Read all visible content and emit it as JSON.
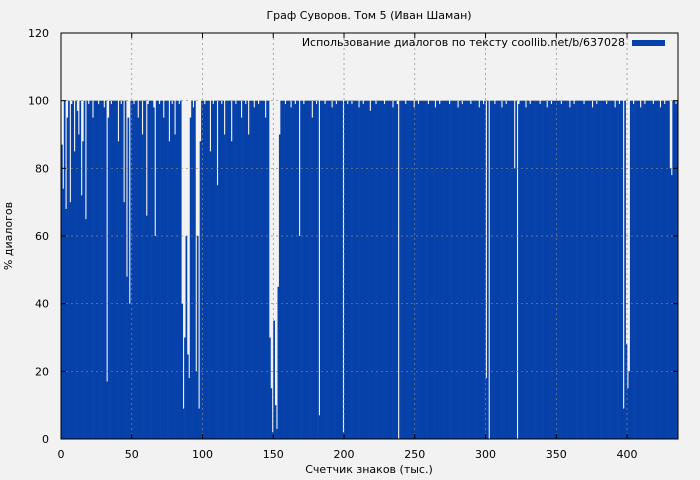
{
  "chart_data": {
    "type": "bar",
    "title": "Граф Суворов. Том 5 (Иван Шаман)",
    "xlabel": "Счетчик знаков (тыс.)",
    "ylabel": "% диалогов",
    "xlim": [
      0,
      436
    ],
    "ylim": [
      0,
      120
    ],
    "xticks": [
      0,
      50,
      100,
      150,
      200,
      250,
      300,
      350,
      400
    ],
    "yticks": [
      0,
      20,
      40,
      60,
      80,
      100,
      120
    ],
    "grid": true,
    "legend_position": "top-right",
    "bar_color": "#0641a9",
    "series": [
      {
        "name": "Использование диалогов по тексту coollib.net/b/637028",
        "x_step": 1,
        "values": [
          87,
          74,
          100,
          68,
          95,
          100,
          70,
          99,
          100,
          85,
          100,
          97,
          90,
          100,
          72,
          88,
          100,
          65,
          100,
          99,
          100,
          100,
          95,
          100,
          100,
          100,
          99,
          100,
          100,
          100,
          98,
          100,
          17,
          95,
          100,
          99,
          100,
          100,
          100,
          100,
          88,
          100,
          99,
          100,
          70,
          100,
          48,
          95,
          40,
          100,
          100,
          99,
          100,
          100,
          95,
          100,
          100,
          90,
          100,
          100,
          66,
          99,
          100,
          100,
          100,
          98,
          60,
          100,
          100,
          99,
          100,
          100,
          95,
          100,
          100,
          100,
          88,
          100,
          99,
          100,
          90,
          100,
          100,
          99,
          100,
          40,
          9,
          30,
          60,
          25,
          18,
          95,
          100,
          98,
          100,
          20,
          60,
          9,
          88,
          100,
          100,
          99,
          100,
          100,
          100,
          85,
          100,
          99,
          100,
          100,
          75,
          100,
          100,
          99,
          100,
          90,
          100,
          100,
          100,
          100,
          88,
          100,
          100,
          99,
          100,
          100,
          100,
          95,
          100,
          100,
          99,
          100,
          90,
          100,
          100,
          100,
          98,
          100,
          100,
          99,
          100,
          100,
          100,
          100,
          95,
          100,
          100,
          30,
          15,
          2,
          35,
          10,
          3,
          45,
          90,
          100,
          100,
          100,
          99,
          100,
          100,
          100,
          98,
          100,
          100,
          99,
          100,
          100,
          60,
          100,
          100,
          99,
          100,
          100,
          100,
          100,
          100,
          95,
          100,
          100,
          99,
          100,
          7,
          100,
          100,
          100,
          99,
          100,
          100,
          100,
          100,
          98,
          100,
          100,
          99,
          100,
          100,
          100,
          100,
          2,
          100,
          100,
          99,
          100,
          100,
          99,
          100,
          100,
          100,
          100,
          98,
          100,
          100,
          99,
          100,
          100,
          100,
          100,
          97,
          100,
          100,
          100,
          99,
          100,
          100,
          100,
          100,
          100,
          99,
          100,
          100,
          100,
          100,
          100,
          98,
          100,
          100,
          99,
          0,
          100,
          100,
          100,
          100,
          99,
          100,
          100,
          100,
          100,
          100,
          98,
          100,
          100,
          99,
          100,
          100,
          100,
          100,
          100,
          100,
          99,
          100,
          100,
          100,
          100,
          98,
          100,
          100,
          99,
          100,
          100,
          100,
          100,
          100,
          100,
          99,
          100,
          100,
          100,
          100,
          100,
          98,
          100,
          100,
          99,
          100,
          100,
          100,
          100,
          100,
          99,
          100,
          100,
          100,
          100,
          100,
          98,
          100,
          100,
          99,
          100,
          18,
          100,
          0,
          100,
          100,
          100,
          99,
          100,
          100,
          100,
          100,
          98,
          100,
          100,
          99,
          100,
          100,
          100,
          100,
          100,
          80,
          100,
          0,
          99,
          100,
          100,
          100,
          100,
          98,
          100,
          100,
          99,
          100,
          100,
          100,
          100,
          100,
          100,
          99,
          100,
          100,
          100,
          100,
          98,
          100,
          100,
          99,
          100,
          100,
          100,
          100,
          100,
          100,
          99,
          100,
          100,
          100,
          100,
          100,
          98,
          100,
          100,
          99,
          100,
          100,
          100,
          100,
          100,
          100,
          99,
          100,
          100,
          100,
          100,
          100,
          98,
          100,
          100,
          99,
          100,
          100,
          100,
          100,
          100,
          100,
          99,
          100,
          100,
          100,
          100,
          100,
          98,
          100,
          100,
          99,
          100,
          100,
          9,
          100,
          28,
          15,
          20,
          100,
          100,
          99,
          100,
          100,
          100,
          100,
          98,
          100,
          100,
          99,
          100,
          100,
          100,
          100,
          100,
          99,
          100,
          100,
          100,
          100,
          98,
          100,
          100,
          99,
          100,
          100,
          100,
          80,
          78,
          100,
          100,
          99,
          100
        ]
      }
    ]
  }
}
